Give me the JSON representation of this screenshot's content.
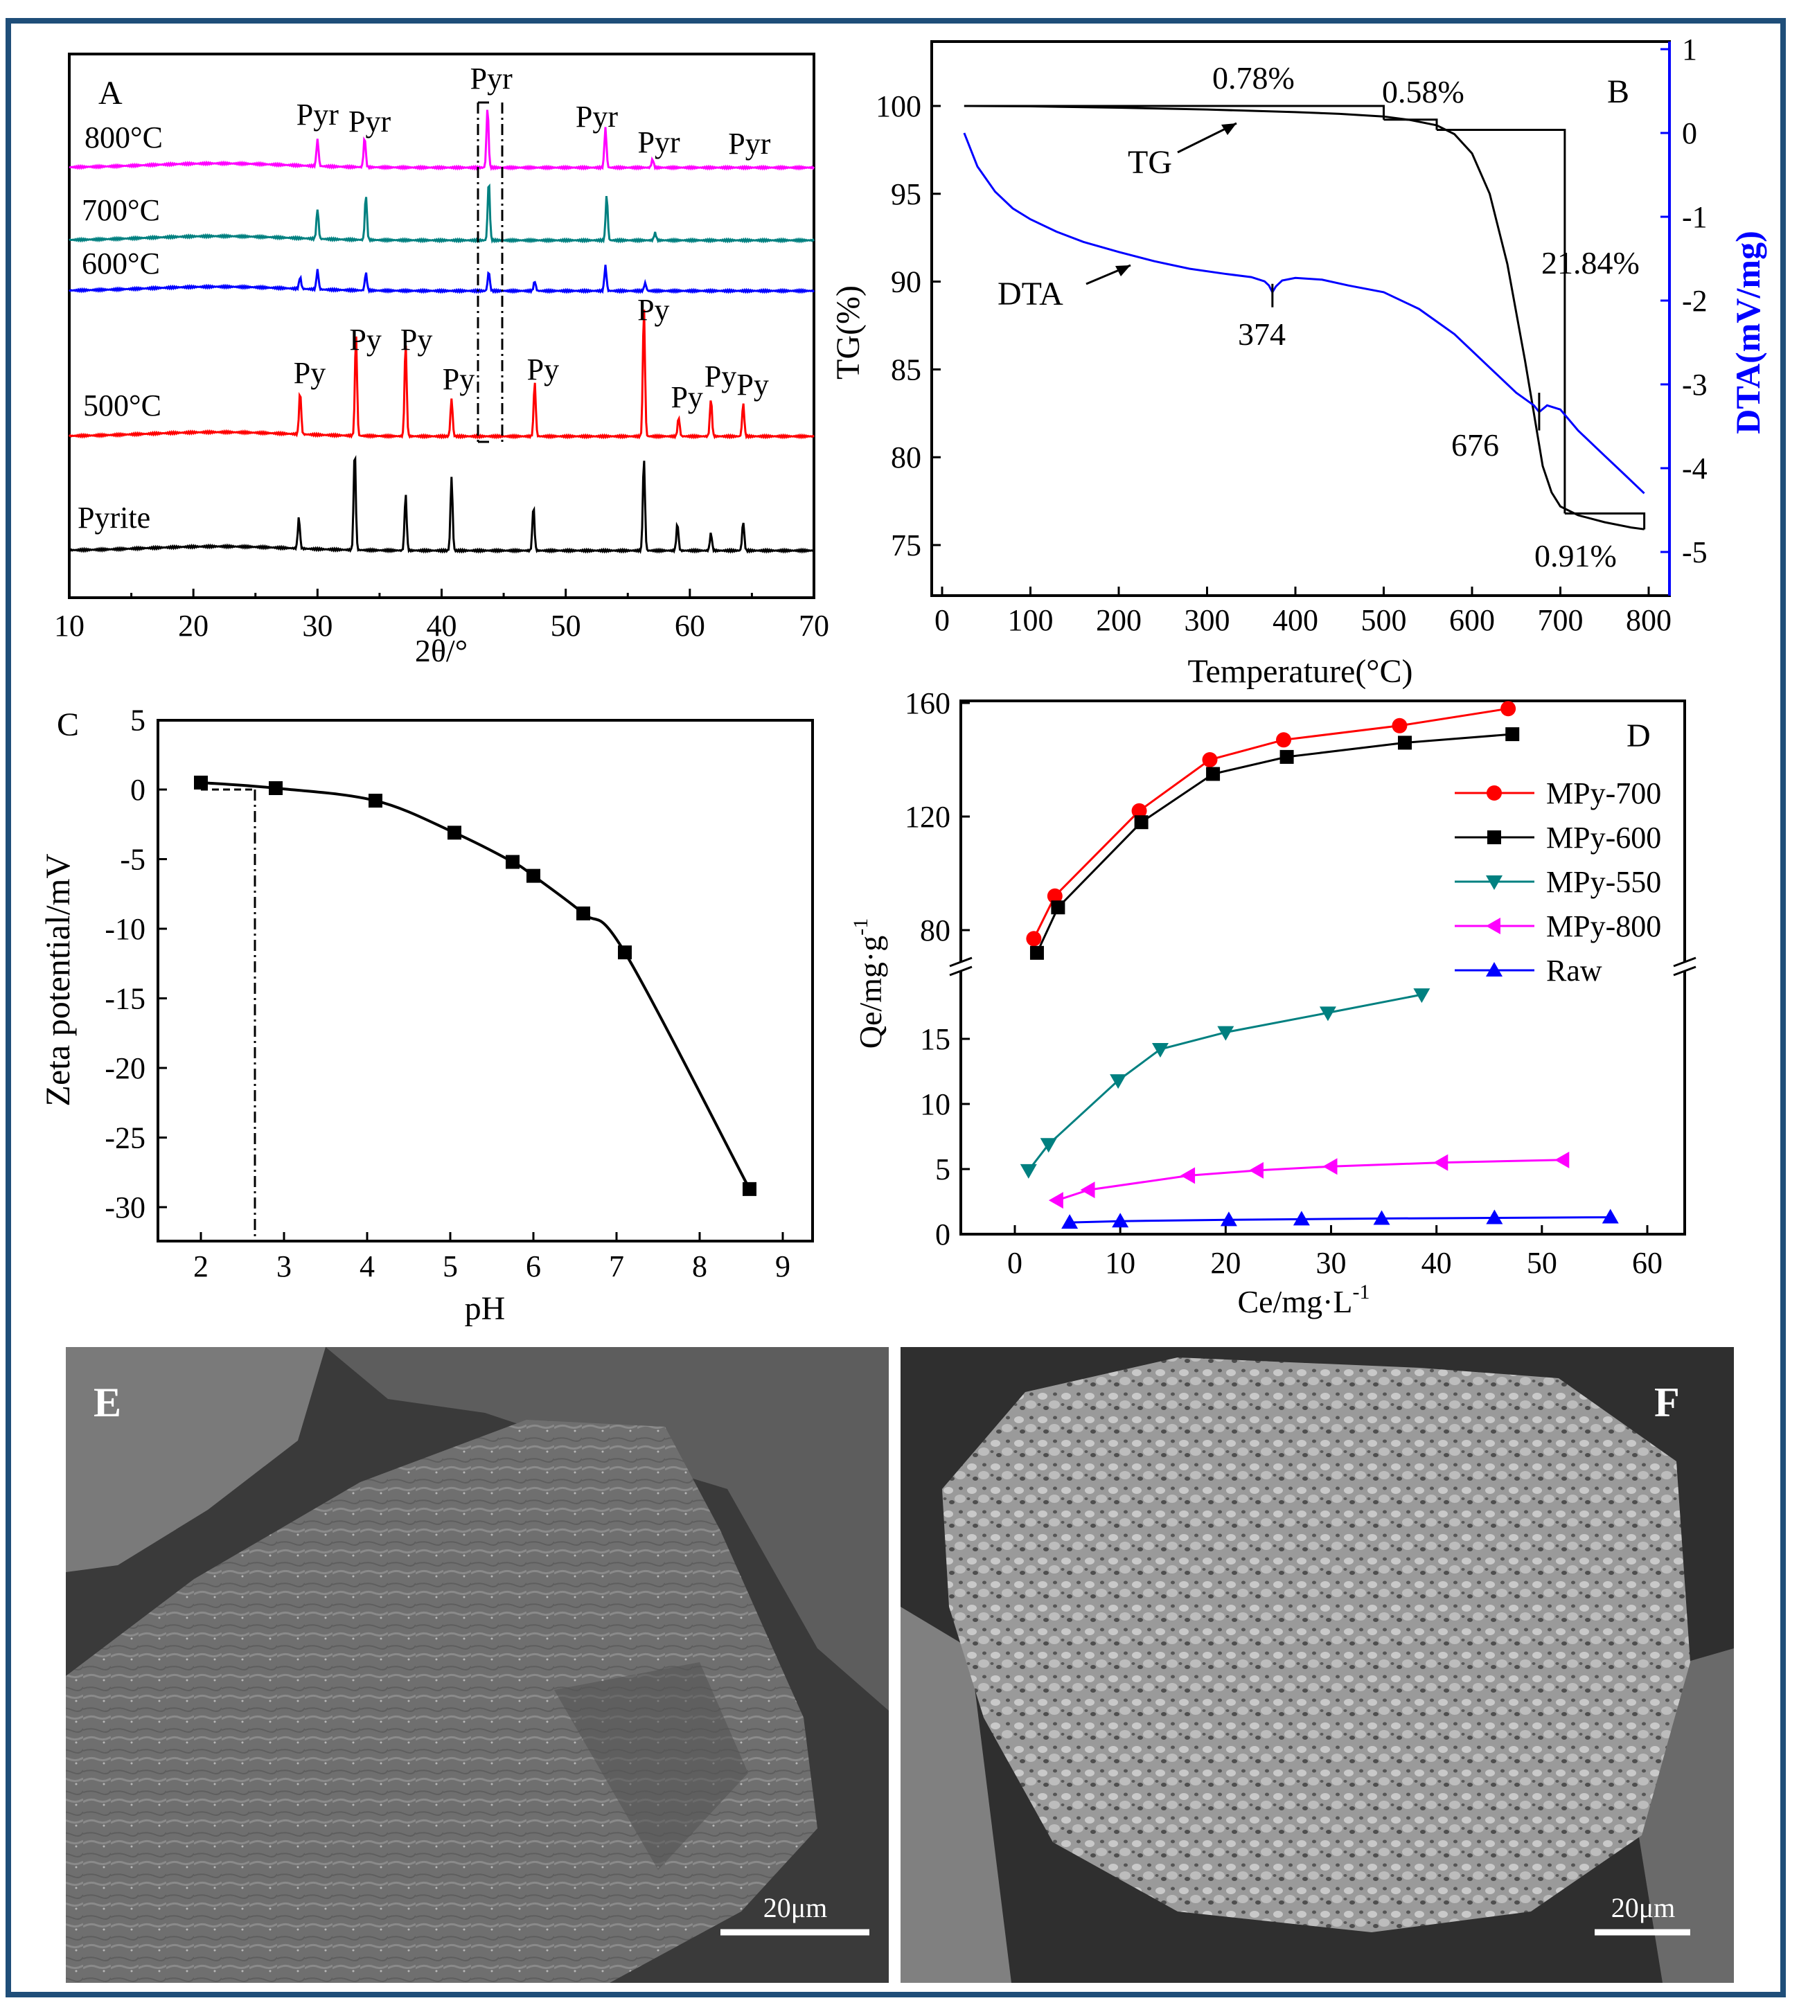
{
  "chart_data": [
    {
      "panel": "A",
      "type": "line",
      "panel_label": "A",
      "xlabel": "2θ/°",
      "ylabel": "",
      "xlim": [
        10,
        70
      ],
      "xticks": [
        10,
        20,
        30,
        40,
        50,
        60,
        70
      ],
      "series": [
        {
          "name": "800°C",
          "color": "#ff00ff",
          "peaks": [
            [
              30.0,
              0.8
            ],
            [
              33.8,
              0.9
            ],
            [
              43.7,
              1.8
            ],
            [
              53.2,
              1.2
            ],
            [
              57.0,
              0.25
            ]
          ]
        },
        {
          "name": "700°C",
          "color": "#008080",
          "peaks": [
            [
              30.0,
              1.2
            ],
            [
              33.9,
              1.8
            ],
            [
              43.8,
              2.4
            ],
            [
              53.3,
              1.8
            ],
            [
              57.2,
              0.3
            ]
          ]
        },
        {
          "name": "600°C",
          "color": "#0000ff",
          "peaks": [
            [
              28.6,
              0.6
            ],
            [
              30.0,
              1.0
            ],
            [
              33.9,
              0.9
            ],
            [
              43.8,
              1.0
            ],
            [
              47.5,
              0.5
            ],
            [
              53.2,
              1.3
            ],
            [
              56.4,
              0.4
            ]
          ]
        },
        {
          "name": "500°C",
          "color": "#ff0000",
          "peaks": [
            [
              28.6,
              1.8
            ],
            [
              33.1,
              4.3
            ],
            [
              37.1,
              4.0
            ],
            [
              40.8,
              1.6
            ],
            [
              47.5,
              2.3
            ],
            [
              56.3,
              5.5
            ],
            [
              59.1,
              0.8
            ],
            [
              61.7,
              1.6
            ],
            [
              64.3,
              1.4
            ]
          ]
        },
        {
          "name": "Pyrite",
          "color": "#000000",
          "peaks": [
            [
              28.5,
              1.6
            ],
            [
              33.0,
              5.2
            ],
            [
              37.1,
              2.9
            ],
            [
              40.8,
              3.8
            ],
            [
              47.4,
              2.3
            ],
            [
              56.3,
              4.8
            ],
            [
              59.0,
              1.4
            ],
            [
              61.7,
              0.9
            ],
            [
              64.3,
              1.5
            ]
          ]
        }
      ],
      "annotations": {
        "pyr_labels": [
          {
            "text": "Pyr",
            "x": 30.0
          },
          {
            "text": "Pyr",
            "x": 34.2
          },
          {
            "text": "Pyr",
            "x": 44.0
          },
          {
            "text": "Pyr",
            "x": 52.5
          },
          {
            "text": "Pyr",
            "x": 57.5
          },
          {
            "text": "Pyr",
            "x": 64.8
          }
        ],
        "py_labels": [
          {
            "text": "Py",
            "x": 28.7
          },
          {
            "text": "Py",
            "x": 33.2
          },
          {
            "text": "Py",
            "x": 37.3
          },
          {
            "text": "Py",
            "x": 40.7
          },
          {
            "text": "Py",
            "x": 47.5
          },
          {
            "text": "Py",
            "x": 56.4
          },
          {
            "text": "Py",
            "x": 59.1
          },
          {
            "text": "Py",
            "x": 61.8
          },
          {
            "text": "Py",
            "x": 64.4
          }
        ]
      }
    },
    {
      "panel": "B",
      "type": "line",
      "panel_label": "B",
      "xlabel": "Temperature(°C)",
      "ylabel": "TG(%)",
      "y2label": "DTA(mV/mg)",
      "xlim": [
        0,
        800
      ],
      "xticks": [
        0,
        100,
        200,
        300,
        400,
        500,
        600,
        700,
        800
      ],
      "ylim": [
        73.5,
        102.5
      ],
      "yticks": [
        75,
        80,
        85,
        90,
        95,
        100
      ],
      "y2lim": [
        -5.25,
        1.0
      ],
      "y2ticks": [
        -5,
        -4,
        -3,
        -2,
        -1,
        0,
        1
      ],
      "series": [
        {
          "name": "TG",
          "color": "#000000",
          "x": [
            25,
            100,
            200,
            300,
            400,
            450,
            500,
            530,
            560,
            580,
            600,
            620,
            640,
            660,
            670,
            680,
            690,
            700,
            720,
            750,
            780,
            795
          ],
          "y": [
            100.0,
            99.98,
            99.9,
            99.8,
            99.65,
            99.55,
            99.4,
            99.2,
            98.9,
            98.4,
            97.3,
            95.0,
            91.0,
            85.5,
            82.5,
            79.5,
            78.0,
            77.2,
            76.7,
            76.3,
            76.0,
            75.9
          ]
        },
        {
          "name": "DTA",
          "color": "#0000ff",
          "axis": "right",
          "x": [
            25,
            40,
            60,
            80,
            100,
            130,
            160,
            200,
            240,
            280,
            320,
            350,
            365,
            370,
            374,
            378,
            385,
            400,
            430,
            460,
            500,
            540,
            580,
            620,
            650,
            670,
            676,
            685,
            700,
            720,
            750,
            770,
            795
          ],
          "y": [
            0.0,
            -0.4,
            -0.7,
            -0.9,
            -1.03,
            -1.18,
            -1.3,
            -1.42,
            -1.53,
            -1.62,
            -1.68,
            -1.72,
            -1.77,
            -1.82,
            -1.9,
            -1.83,
            -1.76,
            -1.73,
            -1.75,
            -1.82,
            -1.9,
            -2.1,
            -2.4,
            -2.8,
            -3.1,
            -3.25,
            -3.33,
            -3.25,
            -3.3,
            -3.55,
            -3.85,
            -4.05,
            -4.3
          ]
        }
      ],
      "annotations": [
        "0.78%",
        "0.58%",
        "21.84%",
        "0.91%",
        "374",
        "676",
        "TG",
        "DTA"
      ],
      "steps": [
        {
          "label": "0.78%",
          "x_from": 25,
          "x_to": 500,
          "y": 100.0,
          "y_end": 99.22
        },
        {
          "label": "0.58%",
          "x_from": 500,
          "x_to": 560,
          "y": 99.22,
          "y_end": 98.64
        },
        {
          "label": "21.84%",
          "x_from": 560,
          "x_to": 705,
          "y": 98.64,
          "y_end": 76.8
        },
        {
          "label": "0.91%",
          "x_from": 705,
          "x_to": 795,
          "y": 76.8,
          "y_end": 75.89
        }
      ]
    },
    {
      "panel": "C",
      "type": "line",
      "panel_label": "C",
      "xlabel": "pH",
      "ylabel": "Zeta potential/mV",
      "xlim": [
        1.5,
        9.5
      ],
      "xticks": [
        2,
        3,
        4,
        5,
        6,
        7,
        8,
        9
      ],
      "ylim": [
        -32.5,
        5
      ],
      "yticks": [
        5,
        0,
        -5,
        -10,
        -15,
        -20,
        -25,
        -30
      ],
      "series": [
        {
          "name": "Zeta potential",
          "color": "#000000",
          "x": [
            2.0,
            2.9,
            4.1,
            5.05,
            5.75,
            6.0,
            6.6,
            7.1,
            8.6
          ],
          "y": [
            0.5,
            0.1,
            -0.8,
            -3.1,
            -5.2,
            -6.2,
            -8.9,
            -11.7,
            -28.7
          ]
        }
      ],
      "pzc_x": 2.65
    },
    {
      "panel": "D",
      "type": "line",
      "panel_label": "D",
      "xlabel": "Ce/mg·L",
      "xlabel_sup": "-1",
      "ylabel": "Qe/mg·g",
      "ylabel_sup": "-1",
      "xlim": [
        -10,
        65
      ],
      "xticks": [
        0,
        10,
        20,
        30,
        40,
        50,
        60
      ],
      "ylim_lower": [
        0,
        19
      ],
      "yticks_lower": [
        0,
        5,
        10,
        15
      ],
      "ylim_upper": [
        65,
        160
      ],
      "yticks_upper": [
        80,
        120,
        160
      ],
      "series": [
        {
          "name": "MPy-700",
          "color": "#ff0000",
          "marker": "circle",
          "x": [
            1.8,
            3.8,
            11.8,
            18.5,
            25.5,
            36.5,
            46.8
          ],
          "y": [
            77,
            92,
            122,
            140,
            147,
            152,
            158
          ]
        },
        {
          "name": "MPy-600",
          "color": "#000000",
          "marker": "square",
          "x": [
            2.1,
            4.1,
            12.0,
            18.8,
            25.8,
            37.0,
            47.2
          ],
          "y": [
            72,
            88,
            118,
            135,
            141,
            146,
            149
          ]
        },
        {
          "name": "MPy-550",
          "color": "#008080",
          "marker": "triangle-down",
          "x": [
            1.3,
            3.2,
            9.8,
            13.8,
            20.0,
            29.7,
            38.6
          ],
          "y": [
            4.9,
            6.9,
            11.8,
            14.2,
            15.5,
            17.0,
            18.4
          ]
        },
        {
          "name": "MPy-800",
          "color": "#ff00ff",
          "marker": "triangle-left",
          "x": [
            4.0,
            7.0,
            16.5,
            23.0,
            30.0,
            40.5,
            52.0
          ],
          "y": [
            2.6,
            3.4,
            4.5,
            4.9,
            5.2,
            5.5,
            5.7
          ]
        },
        {
          "name": "Raw",
          "color": "#0000ff",
          "marker": "triangle-up",
          "x": [
            5.2,
            10.0,
            20.3,
            27.2,
            34.8,
            45.5,
            56.5
          ],
          "y": [
            0.9,
            1.0,
            1.1,
            1.15,
            1.2,
            1.25,
            1.3
          ]
        }
      ]
    }
  ],
  "images": {
    "E": {
      "label": "E",
      "scale_bar": "20μm"
    },
    "F": {
      "label": "F",
      "scale_bar": "20μm"
    }
  }
}
